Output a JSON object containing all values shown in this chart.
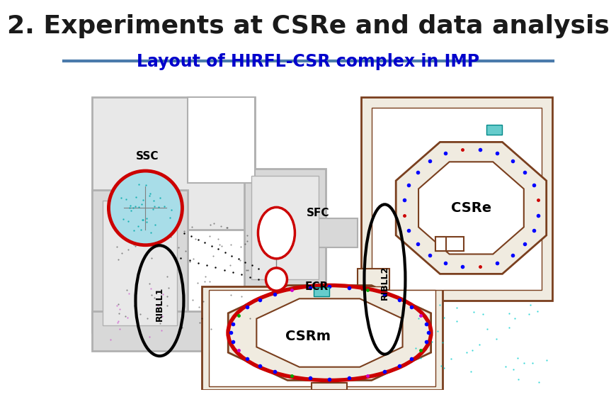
{
  "title": "2. Experiments at CSRe and data analysis",
  "subtitle": "Layout of HIRFL-CSR complex in IMP",
  "title_color": "#1a1a1a",
  "subtitle_color": "#0000cc",
  "separator_color": "#4a7aab",
  "bg_color": "#ffffff",
  "title_fontsize": 26,
  "subtitle_fontsize": 17,
  "gray_bld": "#b0b0b0",
  "gray_fill": "#d8d8d8",
  "gray_light": "#e8e8e8",
  "brown": "#7a3f1e",
  "brown_fill": "#f0ebe0",
  "red": "#cc0000",
  "ssc_fill": "#a8dde8",
  "white": "#ffffff"
}
